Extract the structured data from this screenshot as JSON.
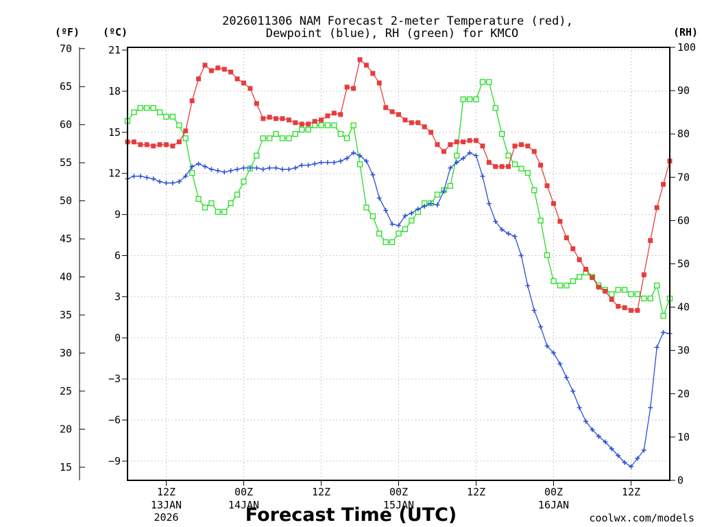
{
  "title": {
    "line1": "2026011306 NAM Forecast 2-meter Temperature (red),",
    "line2": "Dewpoint (blue), RH (green) for KMCO"
  },
  "colors": {
    "temperature": "#e83c3c",
    "dewpoint": "#2a4fd8",
    "rh": "#22dd22",
    "grid": "#9a9a9a"
  },
  "credit": "coolwx.com/models",
  "chart_data": {
    "type": "line",
    "title": "2026011306 NAM Forecast 2-meter Temperature (red), Dewpoint (blue), RH (green) for KMCO",
    "xlabel": "Forecast Time (UTC)",
    "x_unit": "forecast hour",
    "xlim": [
      0,
      84
    ],
    "x_ticks": [
      {
        "hour": 6,
        "label": "12Z",
        "date": "13JAN",
        "year": "2026"
      },
      {
        "hour": 18,
        "label": "00Z",
        "date": "14JAN",
        "year": ""
      },
      {
        "hour": 30,
        "label": "12Z",
        "date": "",
        "year": ""
      },
      {
        "hour": 42,
        "label": "00Z",
        "date": "15JAN",
        "year": ""
      },
      {
        "hour": 54,
        "label": "12Z",
        "date": "",
        "year": ""
      },
      {
        "hour": 66,
        "label": "00Z",
        "date": "16JAN",
        "year": ""
      },
      {
        "hour": 78,
        "label": "12Z",
        "date": "",
        "year": ""
      }
    ],
    "y_axes": {
      "celsius": {
        "label": "(ºC)",
        "ylim": [
          -10.5,
          21
        ],
        "ticks": [
          21,
          18,
          15,
          12,
          9,
          6,
          3,
          0,
          -3,
          -6,
          -9
        ]
      },
      "fahrenheit": {
        "label": "(ºF)",
        "ticks": [
          70,
          65,
          60,
          55,
          50,
          45,
          40,
          35,
          30,
          25,
          20,
          15
        ]
      },
      "rh": {
        "label": "(RH)",
        "ylim": [
          0,
          100
        ],
        "ticks": [
          100,
          90,
          80,
          70,
          60,
          50,
          40,
          30,
          20,
          10,
          0
        ]
      }
    },
    "series": [
      {
        "name": "Temperature",
        "axis": "celsius",
        "marker": "filled-square",
        "x": [
          0,
          1,
          2,
          3,
          4,
          5,
          6,
          7,
          8,
          9,
          10,
          11,
          12,
          13,
          14,
          15,
          16,
          17,
          18,
          19,
          20,
          21,
          22,
          23,
          24,
          25,
          26,
          27,
          28,
          29,
          30,
          31,
          32,
          33,
          34,
          35,
          36,
          37,
          38,
          39,
          40,
          41,
          42,
          43,
          44,
          45,
          46,
          47,
          48,
          49,
          50,
          51,
          52,
          53,
          54,
          55,
          56,
          57,
          58,
          59,
          60,
          61,
          62,
          63,
          64,
          65,
          66,
          67,
          68,
          69,
          70,
          71,
          72,
          73,
          74,
          75,
          76,
          77,
          78,
          79,
          80,
          81,
          82,
          83,
          84
        ],
        "values": [
          14.3,
          14.3,
          14.1,
          14.1,
          14.0,
          14.1,
          14.1,
          14.0,
          14.3,
          15.1,
          17.3,
          18.9,
          19.9,
          19.5,
          19.7,
          19.6,
          19.4,
          18.9,
          18.6,
          18.2,
          17.1,
          16.0,
          16.1,
          16.0,
          16.0,
          15.9,
          15.7,
          15.6,
          15.6,
          15.8,
          15.9,
          16.2,
          16.4,
          16.3,
          18.3,
          18.2,
          20.3,
          19.9,
          19.3,
          18.6,
          16.8,
          16.5,
          16.3,
          15.9,
          15.7,
          15.7,
          15.4,
          15.0,
          14.1,
          13.6,
          14.1,
          14.3,
          14.3,
          14.4,
          14.4,
          14.0,
          12.8,
          12.5,
          12.5,
          12.5,
          14.0,
          14.1,
          14.0,
          13.6,
          12.6,
          11.1,
          9.8,
          8.5,
          7.3,
          6.5,
          5.7,
          5.0,
          4.4,
          3.7,
          3.4,
          2.8,
          2.3,
          2.2,
          2.0,
          2.0,
          4.6,
          7.1,
          9.5,
          11.2,
          12.9
        ]
      },
      {
        "name": "Dewpoint",
        "axis": "celsius",
        "marker": "plus",
        "x": [
          0,
          1,
          2,
          3,
          4,
          5,
          6,
          7,
          8,
          9,
          10,
          11,
          12,
          13,
          14,
          15,
          16,
          17,
          18,
          19,
          20,
          21,
          22,
          23,
          24,
          25,
          26,
          27,
          28,
          29,
          30,
          31,
          32,
          33,
          34,
          35,
          36,
          37,
          38,
          39,
          40,
          41,
          42,
          43,
          44,
          45,
          46,
          47,
          48,
          49,
          50,
          51,
          52,
          53,
          54,
          55,
          56,
          57,
          58,
          59,
          60,
          61,
          62,
          63,
          64,
          65,
          66,
          67,
          68,
          69,
          70,
          71,
          72,
          73,
          74,
          75,
          76,
          77,
          78,
          79,
          80,
          81,
          82,
          83,
          84
        ],
        "values": [
          11.6,
          11.8,
          11.8,
          11.7,
          11.6,
          11.4,
          11.3,
          11.3,
          11.4,
          11.8,
          12.5,
          12.7,
          12.5,
          12.3,
          12.2,
          12.1,
          12.2,
          12.3,
          12.4,
          12.4,
          12.4,
          12.3,
          12.4,
          12.4,
          12.3,
          12.3,
          12.4,
          12.6,
          12.6,
          12.7,
          12.8,
          12.8,
          12.8,
          12.9,
          13.1,
          13.5,
          13.3,
          12.9,
          11.9,
          10.2,
          9.3,
          8.3,
          8.2,
          8.9,
          9.1,
          9.4,
          9.6,
          9.8,
          9.7,
          10.7,
          12.4,
          12.8,
          13.1,
          13.5,
          13.3,
          11.8,
          9.8,
          8.5,
          7.9,
          7.6,
          7.4,
          6.0,
          3.8,
          2.0,
          0.8,
          -0.6,
          -1.1,
          -1.9,
          -2.9,
          -3.9,
          -5.1,
          -6.1,
          -6.7,
          -7.2,
          -7.6,
          -8.1,
          -8.6,
          -9.1,
          -9.4,
          -8.8,
          -8.2,
          -5.1,
          -0.7,
          0.4,
          0.3
        ]
      },
      {
        "name": "RH",
        "axis": "rh",
        "marker": "open-square",
        "x": [
          0,
          1,
          2,
          3,
          4,
          5,
          6,
          7,
          8,
          9,
          10,
          11,
          12,
          13,
          14,
          15,
          16,
          17,
          18,
          19,
          20,
          21,
          22,
          23,
          24,
          25,
          26,
          27,
          28,
          29,
          30,
          31,
          32,
          33,
          34,
          35,
          36,
          37,
          38,
          39,
          40,
          41,
          42,
          43,
          44,
          45,
          46,
          47,
          48,
          49,
          50,
          51,
          52,
          53,
          54,
          55,
          56,
          57,
          58,
          59,
          60,
          61,
          62,
          63,
          64,
          65,
          66,
          67,
          68,
          69,
          70,
          71,
          72,
          73,
          74,
          75,
          76,
          77,
          78,
          79,
          80,
          81,
          82,
          83,
          84
        ],
        "values": [
          83,
          85,
          86,
          86,
          86,
          85,
          84,
          84,
          82,
          79,
          71,
          65,
          63,
          64,
          62,
          62,
          64,
          66,
          69,
          72,
          75,
          79,
          79,
          80,
          79,
          79,
          80,
          81,
          81,
          82,
          82,
          82,
          82,
          80,
          79,
          82,
          73,
          63,
          61,
          57,
          55,
          55,
          57,
          58,
          60,
          62,
          64,
          64,
          66,
          67,
          68,
          75,
          88,
          88,
          88,
          92,
          92,
          86,
          80,
          75,
          73,
          72,
          71,
          67,
          60,
          52,
          46,
          45,
          45,
          46,
          47,
          48,
          47,
          45,
          44,
          43,
          44,
          44,
          43,
          43,
          42,
          42,
          45,
          38,
          42
        ]
      }
    ]
  }
}
